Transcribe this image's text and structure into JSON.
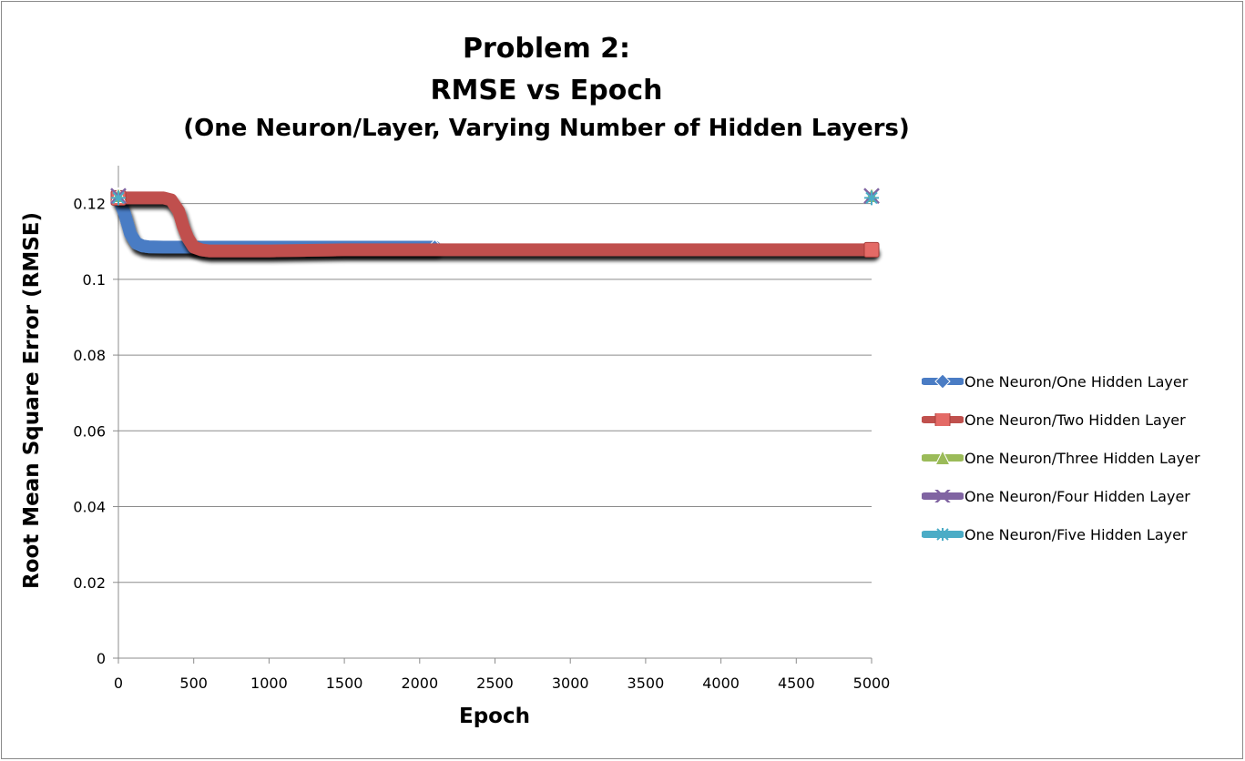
{
  "chart_data": {
    "type": "line",
    "title": [
      "Problem 2:",
      "RMSE vs Epoch",
      "(One Neuron/Layer, Varying Number of Hidden Layers)"
    ],
    "xlabel": "Epoch",
    "ylabel": "Root Mean Square Error (RMSE)",
    "xlim": [
      0,
      5000
    ],
    "ylim": [
      0,
      0.13
    ],
    "xticks": [
      0,
      500,
      1000,
      1500,
      2000,
      2500,
      3000,
      3500,
      4000,
      4500,
      5000
    ],
    "yticks": [
      0,
      0.02,
      0.04,
      0.06,
      0.08,
      0.1,
      0.12
    ],
    "ytick_labels": [
      "0",
      "0.02",
      "0.04",
      "0.06",
      "0.08",
      "0.1",
      "0.12"
    ],
    "grid": "horizontal",
    "legend_position": "right",
    "series": [
      {
        "name": "One Neuron/One Hidden Layer",
        "color": "#4a7cc4",
        "marker": "diamond",
        "x": [
          0,
          40,
          80,
          120,
          160,
          200,
          300,
          500,
          1000,
          1500,
          2100
        ],
        "y": [
          0.1215,
          0.1175,
          0.112,
          0.1095,
          0.1088,
          0.1086,
          0.1085,
          0.1085,
          0.1085,
          0.1085,
          0.1085
        ]
      },
      {
        "name": "One Neuron/Two Hidden Layer",
        "color": "#c0504d",
        "marker": "square",
        "x": [
          0,
          300,
          350,
          400,
          430,
          460,
          500,
          550,
          600,
          800,
          1000,
          1500,
          2000,
          3000,
          4000,
          5000
        ],
        "y": [
          0.1215,
          0.1215,
          0.121,
          0.118,
          0.114,
          0.111,
          0.1085,
          0.1078,
          0.1075,
          0.1075,
          0.1075,
          0.1078,
          0.1078,
          0.1078,
          0.1078,
          0.1078
        ]
      },
      {
        "name": "One Neuron/Three Hidden Layer",
        "color": "#9bbb59",
        "marker": "triangle",
        "x": [
          0,
          5000
        ],
        "y": [
          0.1222,
          0.1222
        ]
      },
      {
        "name": "One Neuron/Four Hidden Layer",
        "color": "#8064a2",
        "marker": "x",
        "x": [
          0,
          5000
        ],
        "y": [
          0.122,
          0.122
        ]
      },
      {
        "name": "One Neuron/Five Hidden Layer",
        "color": "#4bacc6",
        "marker": "star",
        "x": [
          0,
          5000
        ],
        "y": [
          0.1215,
          0.1215
        ]
      }
    ]
  }
}
